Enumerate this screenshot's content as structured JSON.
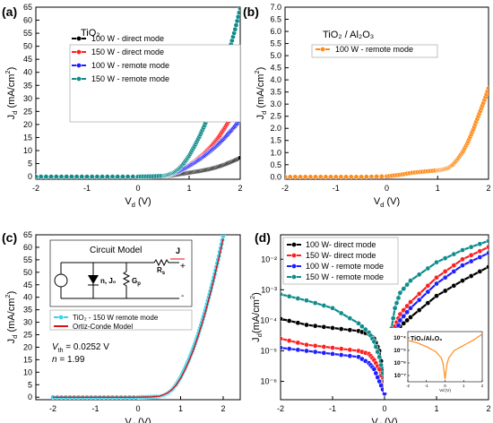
{
  "chart_data": [
    {
      "panel": "(a)",
      "type": "line",
      "legend_title": "TiO₂",
      "legend_placement": "top-left",
      "grid": false,
      "xlim": [
        -2,
        2
      ],
      "ylim": [
        -1,
        65
      ],
      "xticks": [
        "-2",
        "-1",
        "0",
        "1",
        "2"
      ],
      "yticks": [
        "0",
        "5",
        "10",
        "15",
        "20",
        "25",
        "30",
        "35",
        "40",
        "45",
        "50",
        "55",
        "60",
        "65"
      ],
      "xlabel": {
        "main": "V",
        "sub": "d",
        "unit": " (V)"
      },
      "ylabel": {
        "main": "J",
        "sub": "d",
        "unit": " (mA/cm",
        "sup": "2",
        "end": ")"
      },
      "x": [
        -2,
        -1.5,
        -1,
        -0.5,
        0,
        0.25,
        0.5,
        0.6,
        0.7,
        0.8,
        0.9,
        1.0,
        1.1,
        1.2,
        1.3,
        1.4,
        1.5,
        1.6,
        1.7,
        1.8,
        1.9,
        2.0
      ],
      "series": [
        {
          "name": "100 W - direct mode",
          "color": "#000000",
          "values": [
            0,
            0,
            0,
            0,
            0,
            0.05,
            0.15,
            0.3,
            0.55,
            0.9,
            1.2,
            1.5,
            1.8,
            2.1,
            2.5,
            2.9,
            3.4,
            4.0,
            4.7,
            5.5,
            6.3,
            7.2
          ]
        },
        {
          "name": "150 W - direct mode",
          "color": "#ff1f1f",
          "values": [
            0,
            0,
            0,
            0,
            0,
            0.1,
            0.3,
            0.7,
            1.3,
            2.2,
            3.2,
            4.5,
            5.8,
            7.3,
            9.0,
            11.0,
            13.2,
            15.8,
            18.8,
            22.0,
            25.5,
            29.0
          ]
        },
        {
          "name": "100 W - remote mode",
          "color": "#1f1fff",
          "values": [
            0,
            0,
            0,
            0,
            0,
            0.1,
            0.3,
            0.7,
            1.2,
            2.0,
            3.0,
            4.1,
            5.3,
            6.6,
            8.0,
            9.6,
            11.2,
            13.0,
            15.0,
            17.2,
            19.4,
            21.8
          ]
        },
        {
          "name": "150 W - remote mode",
          "color": "#0f8c8c",
          "values": [
            0,
            0,
            0,
            0,
            0,
            0.1,
            0.3,
            0.8,
            1.6,
            3.0,
            5.2,
            8.0,
            11.5,
            15.3,
            19.6,
            24.5,
            30.0,
            36.0,
            42.5,
            49.3,
            56.5,
            64.5
          ]
        }
      ]
    },
    {
      "panel": "(b)",
      "type": "line",
      "legend_title": "TiO₂ / Al₂O₃",
      "legend_placement": "top-left",
      "grid": false,
      "xlim": [
        -2,
        2
      ],
      "ylim": [
        -0.1,
        7
      ],
      "xticks": [
        "-2",
        "-1",
        "0",
        "1",
        "2"
      ],
      "yticks": [
        "0.0",
        "0.5",
        "1.0",
        "1.5",
        "2.0",
        "2.5",
        "3.0",
        "3.5",
        "4.0",
        "4.5",
        "5.0",
        "5.5",
        "6.0",
        "6.5",
        "7.0"
      ],
      "xlabel": {
        "main": "V",
        "sub": "d",
        "unit": " (V)"
      },
      "ylabel": {
        "main": "J",
        "sub": "d",
        "unit": " (mA/cm",
        "sup": "2",
        "end": ")"
      },
      "x": [
        -2,
        -1.5,
        -1,
        -0.5,
        0,
        0.25,
        0.5,
        0.75,
        1.0,
        1.1,
        1.2,
        1.3,
        1.4,
        1.5,
        1.6,
        1.7,
        1.8,
        1.9,
        2.0
      ],
      "series": [
        {
          "name": "100 W - remote mode",
          "color": "#ff8c1a",
          "values": [
            0,
            0,
            0,
            0,
            0.02,
            0.08,
            0.17,
            0.22,
            0.27,
            0.3,
            0.36,
            0.5,
            0.75,
            1.05,
            1.45,
            1.95,
            2.5,
            3.05,
            3.65
          ]
        }
      ]
    },
    {
      "panel": "(c)",
      "type": "line",
      "grid": false,
      "xlim": [
        -2.4,
        2.4
      ],
      "ylim": [
        -1,
        65
      ],
      "xticks": [
        "-2",
        "-1",
        "0",
        "1",
        "2"
      ],
      "yticks": [
        "0",
        "5",
        "10",
        "15",
        "20",
        "25",
        "30",
        "35",
        "40",
        "45",
        "50",
        "55",
        "60",
        "65"
      ],
      "xlabel": {
        "main": "V",
        "sub": "d",
        "unit": " (V)"
      },
      "ylabel": {
        "main": "J",
        "sub": "d",
        "unit": " (mA/cm",
        "sup": "2",
        "end": ")"
      },
      "circuit": {
        "title": "Circuit Model",
        "current": "J",
        "diode": "n, J₀",
        "rs": "R",
        "rs_sub": "s",
        "gp": "G",
        "gp_sub": "p",
        "plus": "+",
        "minus": "-"
      },
      "annotation_vth": {
        "prefix": "V",
        "sub": "th",
        "value": " = 0.0252 V"
      },
      "annotation_n": {
        "prefix": "n",
        "value": " = 1.99"
      },
      "x": [
        -2,
        -1.5,
        -1,
        -0.5,
        0,
        0.25,
        0.5,
        0.6,
        0.7,
        0.8,
        0.9,
        1.0,
        1.1,
        1.2,
        1.3,
        1.4,
        1.5,
        1.6,
        1.7,
        1.8,
        1.9,
        2.0
      ],
      "series": [
        {
          "name": "TiO₂ - 150 W remote mode",
          "color": "#33d6f0",
          "values": [
            0,
            0,
            0,
            0,
            0,
            0.1,
            0.3,
            0.8,
            1.6,
            3.0,
            5.2,
            8.0,
            11.5,
            15.3,
            19.6,
            24.5,
            30.0,
            36.0,
            42.5,
            49.3,
            56.5,
            64.5
          ]
        },
        {
          "name": "Ortiz-Conde Model",
          "color": "#e01010",
          "values": [
            0,
            0,
            0,
            0,
            0,
            0.1,
            0.4,
            1.0,
            1.8,
            3.1,
            5.0,
            7.6,
            10.9,
            14.7,
            19.0,
            23.9,
            29.3,
            35.2,
            41.7,
            48.6,
            55.8,
            63.5
          ]
        }
      ]
    },
    {
      "panel": "(d)",
      "type": "line",
      "yscale": "log",
      "grid": false,
      "xlim": [
        -2,
        2
      ],
      "ylim_exp": [
        -6.6,
        -1.2
      ],
      "xticks": [
        "-2",
        "-1",
        "0",
        "1",
        "2"
      ],
      "yticks": [
        "10⁻⁶",
        "10⁻⁵",
        "10⁻⁴",
        "10⁻³",
        "10⁻²"
      ],
      "xlabel": {
        "main": "V",
        "sub": "d",
        "unit": " (V)"
      },
      "ylabel": {
        "main": "J",
        "sub": "d",
        "unit": "(mA/cm",
        "sup": "2",
        "end": ")"
      },
      "x": [
        -2,
        -1.5,
        -1,
        -0.5,
        -0.3,
        -0.2,
        -0.1,
        0,
        0.1,
        0.2,
        0.3,
        0.5,
        1.0,
        1.5,
        2.0
      ],
      "series": [
        {
          "name": "100 W- direct mode",
          "color": "#000000",
          "log10_values": [
            -3.95,
            -4.15,
            -4.25,
            -4.35,
            -4.45,
            -4.6,
            -5.0,
            -6.0,
            -5.0,
            -4.5,
            -4.2,
            -3.9,
            -3.2,
            -2.7,
            -2.25
          ]
        },
        {
          "name": "150 W- direct mode",
          "color": "#ff1f1f",
          "log10_values": [
            -4.6,
            -4.8,
            -4.9,
            -5.0,
            -5.1,
            -5.3,
            -5.6,
            -6.2,
            -5.2,
            -4.2,
            -3.8,
            -3.4,
            -2.6,
            -2.0,
            -1.6
          ]
        },
        {
          "name": "100 W - remote mode",
          "color": "#1f1fff",
          "log10_values": [
            -4.9,
            -5.0,
            -5.1,
            -5.2,
            -5.4,
            -5.6,
            -6.0,
            -6.4,
            -5.6,
            -4.5,
            -4.0,
            -3.6,
            -2.8,
            -2.2,
            -1.8
          ]
        },
        {
          "name": "150 W - remote mode",
          "color": "#0f8c8c",
          "log10_values": [
            -3.15,
            -3.35,
            -3.6,
            -4.1,
            -4.4,
            -4.7,
            -5.2,
            -6.0,
            -4.6,
            -3.6,
            -3.1,
            -2.7,
            -2.1,
            -1.7,
            -1.4
          ]
        }
      ],
      "inset": {
        "title": "TiO₂/Al₂O₃",
        "xlabel": "Vd (V)",
        "color": "#ff8c1a",
        "xlim": [
          -2,
          2
        ],
        "ylim_exp": [
          -7.5,
          -3.5
        ],
        "xticks": [
          "-2",
          "-1",
          "0",
          "1",
          "2"
        ],
        "yticks": [
          "10⁻⁷",
          "10⁻⁶",
          "10⁻⁵",
          "10⁻⁴"
        ],
        "x": [
          -2,
          -1.5,
          -1,
          -0.5,
          -0.2,
          -0.1,
          0,
          0.1,
          0.2,
          0.5,
          1,
          1.5,
          2
        ],
        "log10_values": [
          -4.2,
          -4.4,
          -4.7,
          -5.1,
          -5.6,
          -6.1,
          -7.3,
          -6.1,
          -5.6,
          -5.0,
          -4.6,
          -4.2,
          -3.7
        ]
      }
    }
  ]
}
